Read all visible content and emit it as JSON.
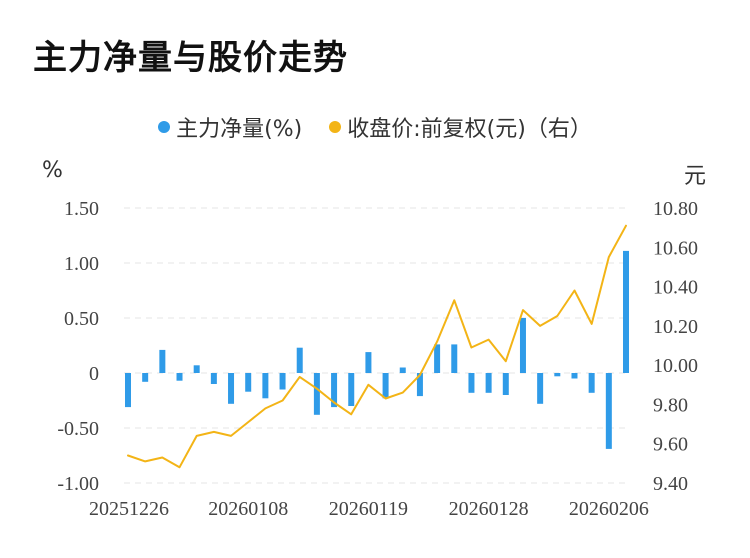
{
  "title": "主力净量与股价走势",
  "legend": {
    "bar_label": "主力净量(%)",
    "line_label": "收盘价:前复权(元)（右）"
  },
  "units": {
    "left": "%",
    "right": "元"
  },
  "colors": {
    "bar": "#2f9be8",
    "line": "#f3b416",
    "grid": "#e6e6e6"
  },
  "chart_data": {
    "type": "bar",
    "x_tick_labels": [
      "20251226",
      "20260108",
      "20260119",
      "20260128",
      "20260206"
    ],
    "y_left_ticks": [
      "1.50",
      "1.00",
      "0.50",
      "0",
      "-0.50",
      "-1.00"
    ],
    "y_right_ticks": [
      "10.80",
      "10.60",
      "10.40",
      "10.20",
      "10.00",
      "9.80",
      "9.60",
      "9.40"
    ],
    "ylim_left": [
      -1.0,
      1.5
    ],
    "ylim_right": [
      9.4,
      10.8
    ],
    "grid": true,
    "legend_position": "top",
    "series": [
      {
        "name": "主力净量(%)",
        "type": "bar",
        "axis": "left",
        "values": [
          -0.31,
          -0.08,
          0.21,
          -0.07,
          0.07,
          -0.1,
          -0.28,
          -0.17,
          -0.23,
          -0.15,
          0.23,
          -0.38,
          -0.31,
          -0.3,
          0.19,
          -0.23,
          0.05,
          -0.21,
          0.26,
          0.26,
          -0.18,
          -0.18,
          -0.2,
          0.5,
          -0.28,
          -0.03,
          -0.05,
          -0.18,
          -0.69,
          1.11
        ]
      },
      {
        "name": "收盘价:前复权(元)（右）",
        "type": "line",
        "axis": "right",
        "values": [
          9.54,
          9.51,
          9.53,
          9.48,
          9.64,
          9.66,
          9.64,
          9.71,
          9.78,
          9.82,
          9.94,
          9.88,
          9.81,
          9.75,
          9.9,
          9.83,
          9.86,
          9.95,
          10.12,
          10.33,
          10.09,
          10.13,
          10.02,
          10.28,
          10.2,
          10.25,
          10.38,
          10.21,
          10.55,
          10.71
        ]
      }
    ]
  }
}
